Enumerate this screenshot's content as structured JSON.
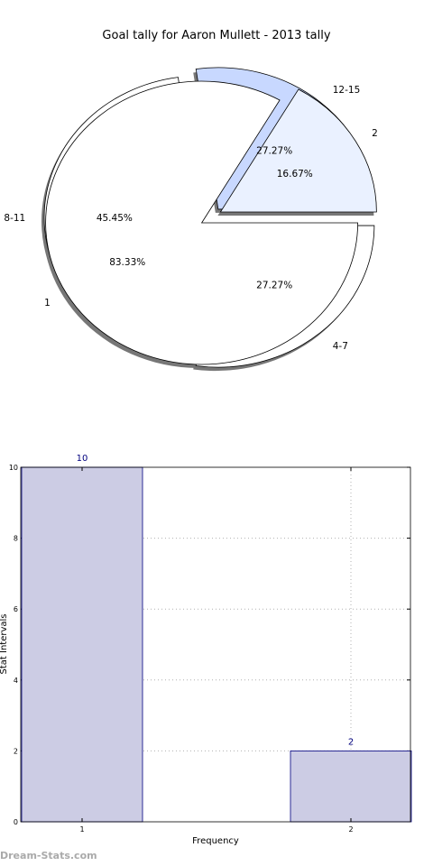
{
  "chart_data": [
    {
      "type": "pie",
      "title": "Goal tally for Aaron Mullett - 2013 tally",
      "rings": [
        {
          "name": "",
          "slices": [
            {
              "label": "4-7",
              "value": 27.27,
              "pct_label": "27.27%",
              "color": "#ffffff"
            },
            {
              "label": "8-11",
              "value": 45.45,
              "pct_label": "45.45%",
              "color": "#ffffff"
            },
            {
              "label": "12-15",
              "value": 27.27,
              "pct_label": "27.27%",
              "color": "#c8d8ff"
            }
          ]
        },
        {
          "name": "",
          "slices": [
            {
              "label": "1",
              "value": 83.33,
              "pct_label": "83.33%",
              "color": "#ffffff"
            },
            {
              "label": "2",
              "value": 16.67,
              "pct_label": "16.67%",
              "color": "#eaf1ff"
            }
          ]
        }
      ]
    },
    {
      "type": "bar",
      "categories": [
        "1",
        "2"
      ],
      "values": [
        10,
        2
      ],
      "value_labels": [
        "10",
        "2"
      ],
      "xlabel": "Frequency",
      "ylabel": "Stat Intervals",
      "ylim": [
        0,
        10
      ],
      "yticks": [
        "0",
        "2",
        "4",
        "6",
        "8",
        "10"
      ],
      "grid": true,
      "bar_color": "#cccce4",
      "bar_edge": "#00007f"
    }
  ],
  "watermark": "Dream-Stats.com"
}
